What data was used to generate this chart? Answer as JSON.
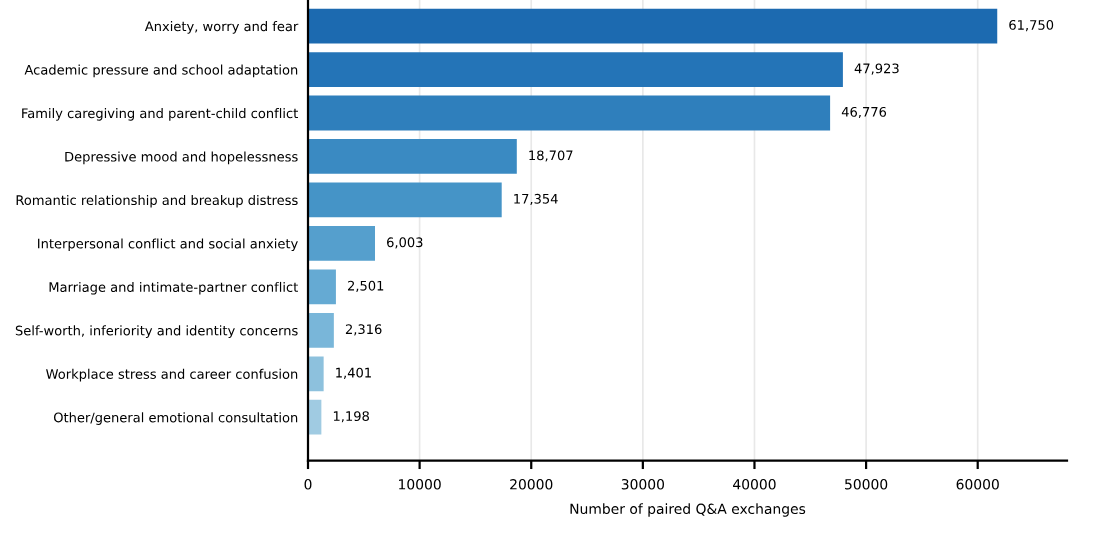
{
  "chart_data": {
    "type": "bar",
    "orientation": "horizontal",
    "xlabel": "Number of paired Q&A exchanges",
    "categories": [
      "Anxiety, worry and fear",
      "Academic pressure and school adaptation",
      "Family caregiving and parent-child conflict",
      "Depressive mood and hopelessness",
      "Romantic relationship and breakup distress",
      "Interpersonal conflict and social anxiety",
      "Marriage and intimate-partner conflict",
      "Self-worth, inferiority and identity concerns",
      "Workplace stress and career confusion",
      "Other/general emotional consultation"
    ],
    "values": [
      61750,
      47923,
      46776,
      18707,
      17354,
      6003,
      2501,
      2316,
      1401,
      1198
    ],
    "value_labels": [
      "61,750",
      "47,923",
      "46,776",
      "18,707",
      "17,354",
      "6,003",
      "2,501",
      "2,316",
      "1,401",
      "1,198"
    ],
    "colors": [
      "#1c6ab0",
      "#2474b7",
      "#2f7fbc",
      "#3a8ac2",
      "#4594c7",
      "#559fcd",
      "#65aad3",
      "#79b6d9",
      "#8dc1dd",
      "#a0cbe2"
    ],
    "xlim": [
      0,
      68000
    ],
    "xticks": [
      0,
      10000,
      20000,
      30000,
      40000,
      50000,
      60000
    ],
    "grid": "x"
  }
}
